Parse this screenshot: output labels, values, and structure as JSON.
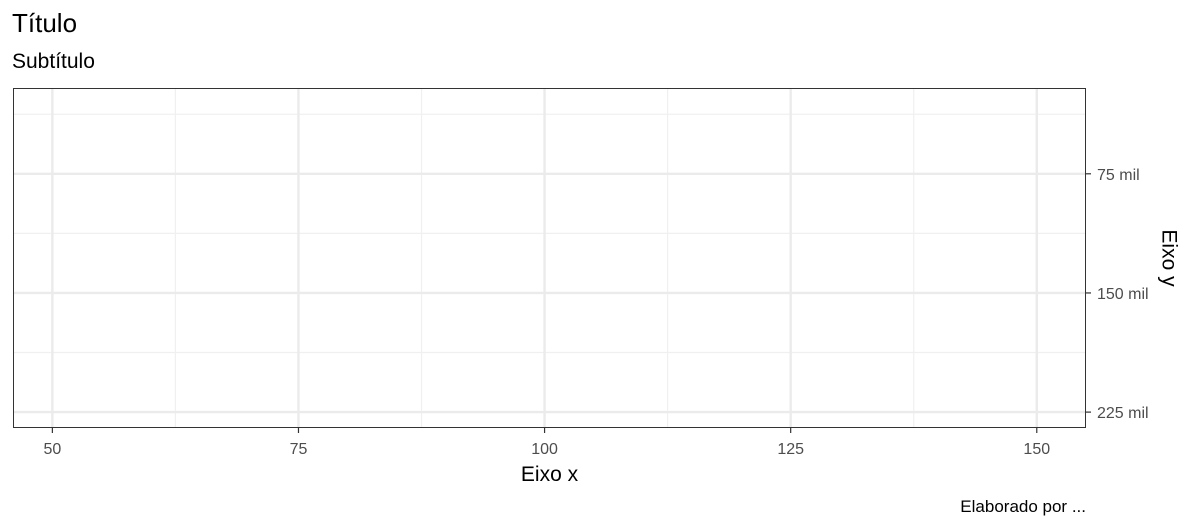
{
  "chart_data": {
    "type": "scatter",
    "title": "Título",
    "subtitle": "Subtítulo",
    "caption": "Elaborado por ...",
    "xlabel": "Eixo x",
    "ylabel": "Eixo y",
    "xlim": [
      46,
      155
    ],
    "ylim": [
      21000,
      235000
    ],
    "x_ticks": [
      50,
      75,
      100,
      125,
      150
    ],
    "x_tick_labels": [
      "50",
      "75",
      "100",
      "125",
      "150"
    ],
    "x_minor_ticks": [
      62.5,
      87.5,
      112.5,
      137.5
    ],
    "y_reversed": true,
    "y_axis_position": "right",
    "y_ticks": [
      75000,
      150000,
      225000
    ],
    "y_tick_labels": [
      "75 mil",
      "150 mil",
      "225 mil"
    ],
    "y_minor_ticks": [
      37500,
      112500,
      187500
    ],
    "grid": true,
    "series": []
  }
}
